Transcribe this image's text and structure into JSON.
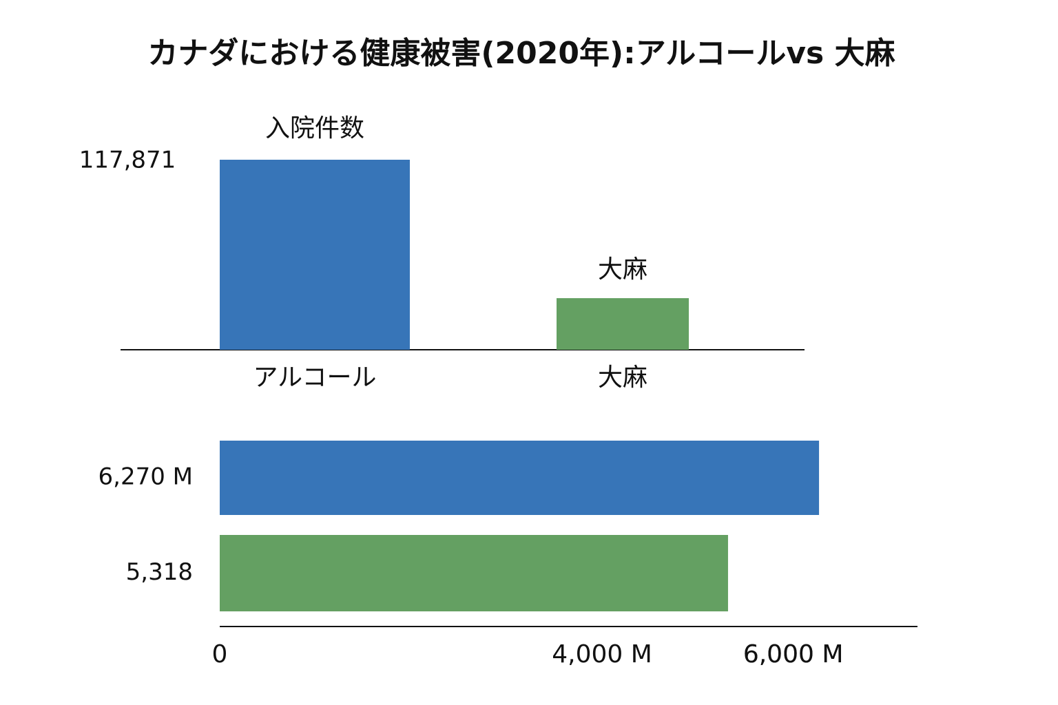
{
  "title": "カナダにおける健康被害(2020年):アルコールvs 大麻",
  "chart_data": [
    {
      "type": "bar",
      "title": "入院件数",
      "annotation": "大麻",
      "categories": [
        "アルコール",
        "大麻"
      ],
      "values": [
        117871,
        32000
      ],
      "value_labels": [
        "117,871",
        null
      ],
      "colors": [
        "#3775b8",
        "#64a062"
      ]
    },
    {
      "type": "barh",
      "values": [
        6270,
        5318
      ],
      "value_labels": [
        "6,270 M",
        "5,318"
      ],
      "colors": [
        "#3775b8",
        "#64a062"
      ],
      "xlim": [
        0,
        7300
      ],
      "xticks": [
        0,
        {
          "value": 4000,
          "label": "4,000 M"
        },
        {
          "value": 6000,
          "label": "6,000 M"
        },
        {
          "value": 6000,
          "label": "6,000 M"
        }
      ]
    }
  ]
}
